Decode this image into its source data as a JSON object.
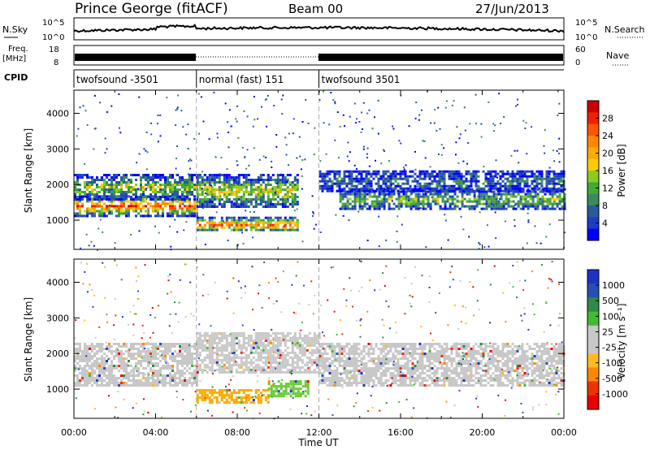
{
  "header": {
    "station": "Prince George (fitACF)",
    "beam": "Beam 00",
    "date": "27/Jun/2013"
  },
  "top_strip": {
    "nsky_label": "N.Sky",
    "nsearch_label": "N.Search",
    "left_ticks": [
      "10^5",
      "10^0"
    ],
    "right_ticks": [
      "10^5",
      "10^0"
    ],
    "freq_label_1": "Freq.",
    "freq_label_2": "[MHz]",
    "freq_ticks": [
      "18",
      "8"
    ],
    "nave_label": "Nave",
    "nave_ticks": [
      "60",
      "0"
    ],
    "cpid_label": "CPID",
    "cpid_segments": [
      {
        "label": "twofsound -3501",
        "start_hour": 0,
        "end_hour": 6
      },
      {
        "label": "normal (fast) 151",
        "start_hour": 6,
        "end_hour": 12
      },
      {
        "label": "twofsound 3501",
        "start_hour": 12,
        "end_hour": 24
      }
    ]
  },
  "chart_data": [
    {
      "type": "heatmap",
      "panel": "power",
      "ylabel": "Slant Range [km]",
      "xlabel": "",
      "xlim": [
        0,
        24
      ],
      "ylim": [
        180,
        4650
      ],
      "yticks": [
        "1000",
        "2000",
        "3000",
        "4000"
      ],
      "colorbar": {
        "label": "Power [dB]",
        "ticks": [
          "4",
          "8",
          "12",
          "16",
          "20",
          "24",
          "28"
        ],
        "colors": [
          "#0000ff",
          "#1e3cc8",
          "#2a5a9a",
          "#3a8a5a",
          "#44aa33",
          "#88cc22",
          "#ffcc00",
          "#ffaa00",
          "#ff8800",
          "#ff5500",
          "#ee2200",
          "#cc0000"
        ]
      },
      "bands": [
        {
          "t0": 0,
          "t1": 6,
          "r0": 1150,
          "r1": 1700,
          "level": 0.85
        },
        {
          "t0": 0,
          "t1": 6,
          "r0": 1600,
          "r1": 2300,
          "level": 0.45
        },
        {
          "t0": 6,
          "t1": 11,
          "r0": 700,
          "r1": 1100,
          "level": 0.8
        },
        {
          "t0": 6,
          "t1": 11,
          "r0": 1400,
          "r1": 2300,
          "level": 0.55
        },
        {
          "t0": 13,
          "t1": 24,
          "r0": 1300,
          "r1": 1900,
          "level": 0.4
        },
        {
          "t0": 12,
          "t1": 24,
          "r0": 1800,
          "r1": 2400,
          "level": 0.2
        }
      ]
    },
    {
      "type": "heatmap",
      "panel": "velocity",
      "ylabel": "Slant Range [km]",
      "xlabel": "Time UT",
      "xlim": [
        0,
        24
      ],
      "ylim": [
        180,
        4650
      ],
      "yticks": [
        "1000",
        "2000",
        "3000",
        "4000"
      ],
      "xticks": [
        "00:00",
        "04:00",
        "08:00",
        "12:00",
        "16:00",
        "20:00",
        "00:00"
      ],
      "colorbar": {
        "label": "Velocity [m s⁻¹]",
        "ticks": [
          "1000",
          "500",
          "100",
          "25",
          "-25",
          "-100",
          "-500",
          "-1000"
        ],
        "colors": [
          "#1e32c8",
          "#2850b4",
          "#2e8a46",
          "#44bb33",
          "#c8c8c8",
          "#c8c8c8",
          "#ffbb22",
          "#ff8800",
          "#ee3300",
          "#ee0000"
        ]
      },
      "bands": [
        {
          "t0": 0,
          "t1": 6,
          "r0": 1100,
          "r1": 2300,
          "color": "#c8c8c8"
        },
        {
          "t0": 6,
          "t1": 12,
          "r0": 1500,
          "r1": 2600,
          "color": "#c8c8c8"
        },
        {
          "t0": 6,
          "t1": 9.5,
          "r0": 650,
          "r1": 1000,
          "color": "#ffaa00"
        },
        {
          "t0": 9.5,
          "t1": 11.5,
          "r0": 800,
          "r1": 1250,
          "color": "#66cc33"
        },
        {
          "t0": 12,
          "t1": 24,
          "r0": 1100,
          "r1": 2300,
          "color": "#c8c8c8"
        }
      ]
    }
  ],
  "colors": {
    "axis": "#000000",
    "gap_dash": "#aaaaaa"
  }
}
